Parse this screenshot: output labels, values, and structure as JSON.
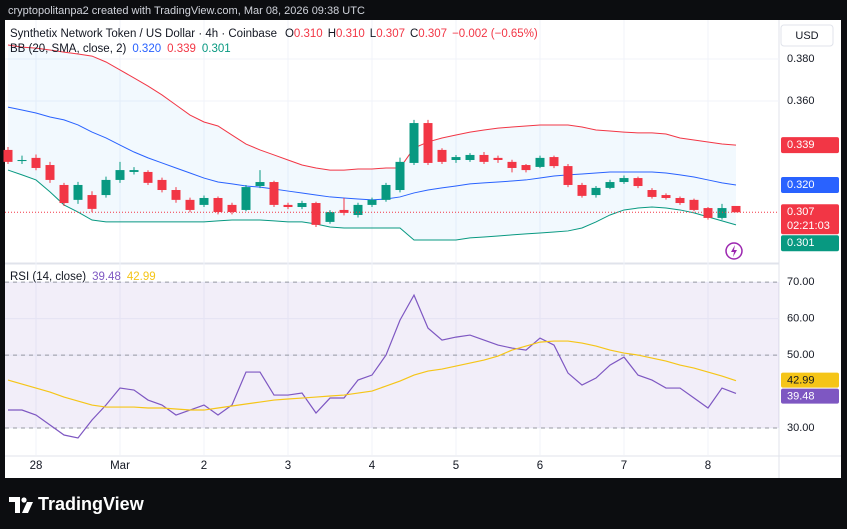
{
  "header": {
    "credit": "cryptopolitanpa2 created with TradingView.com, Mar 08, 2026 09:38 UTC",
    "instrument": "Synthetix Network Token / US Dollar · 4h · Coinbase",
    "ohlc": [
      {
        "label": "O",
        "value": "0.310"
      },
      {
        "label": "H",
        "value": "0.310"
      },
      {
        "label": "L",
        "value": "0.307"
      },
      {
        "label": "C",
        "value": "0.307"
      }
    ],
    "change": "−0.002 (−0.65%)",
    "currency": "USD"
  },
  "footer": {
    "brand": "TradingView"
  },
  "chart_data": [
    {
      "type": "candlestick",
      "grid": true,
      "categories": [
        null,
        null,
        "28",
        null,
        null,
        null,
        null,
        null,
        "Mar",
        null,
        null,
        null,
        null,
        null,
        "2",
        null,
        null,
        null,
        null,
        null,
        "3",
        null,
        null,
        null,
        null,
        null,
        "4",
        null,
        null,
        null,
        null,
        null,
        "5",
        null,
        null,
        null,
        null,
        null,
        "6",
        null,
        null,
        null,
        null,
        null,
        "7",
        null,
        null,
        null,
        null,
        null,
        "8",
        null,
        null
      ],
      "open": [
        0.3367,
        0.3314,
        0.3329,
        0.3295,
        0.32,
        0.3129,
        0.3152,
        0.3152,
        0.3224,
        0.3262,
        0.3262,
        0.3224,
        0.3176,
        0.3129,
        0.3105,
        0.3138,
        0.3105,
        0.3081,
        0.3195,
        0.3214,
        0.3105,
        0.3095,
        0.3114,
        0.3024,
        0.3081,
        0.3057,
        0.3105,
        0.3129,
        0.3176,
        0.3305,
        0.3495,
        0.3367,
        0.3319,
        0.3319,
        0.3343,
        0.3329,
        0.331,
        0.3295,
        0.3286,
        0.3333,
        0.329,
        0.32,
        0.3152,
        0.3186,
        0.3214,
        0.3233,
        0.3176,
        0.3152,
        0.3138,
        0.3129,
        0.309,
        0.3043,
        0.31
      ],
      "high": [
        0.3381,
        0.334,
        0.3345,
        0.331,
        0.321,
        0.3215,
        0.317,
        0.324,
        0.331,
        0.3285,
        0.327,
        0.3235,
        0.319,
        0.314,
        0.315,
        0.3145,
        0.3115,
        0.32,
        0.3271,
        0.322,
        0.3115,
        0.3125,
        0.312,
        0.308,
        0.3138,
        0.3115,
        0.314,
        0.321,
        0.333,
        0.351,
        0.351,
        0.3375,
        0.3343,
        0.3352,
        0.3357,
        0.334,
        0.332,
        0.33,
        0.334,
        0.334,
        0.33,
        0.321,
        0.3195,
        0.3225,
        0.3245,
        0.324,
        0.3185,
        0.316,
        0.3145,
        0.3135,
        0.3095,
        0.311,
        0.31
      ],
      "low": [
        0.33,
        0.33,
        0.327,
        0.321,
        0.31,
        0.311,
        0.307,
        0.314,
        0.321,
        0.325,
        0.32,
        0.3165,
        0.3115,
        0.307,
        0.3095,
        0.306,
        0.306,
        0.3075,
        0.3185,
        0.3095,
        0.3085,
        0.3085,
        0.3,
        0.3015,
        0.3055,
        0.3045,
        0.3095,
        0.312,
        0.3165,
        0.3295,
        0.3295,
        0.33,
        0.3305,
        0.331,
        0.33,
        0.3305,
        0.326,
        0.326,
        0.328,
        0.328,
        0.319,
        0.314,
        0.314,
        0.318,
        0.3205,
        0.3185,
        0.3135,
        0.313,
        0.3105,
        0.3075,
        0.3035,
        0.3035,
        0.307
      ],
      "close": [
        0.331,
        0.3319,
        0.3281,
        0.3224,
        0.3114,
        0.32,
        0.3086,
        0.3224,
        0.3271,
        0.3271,
        0.321,
        0.3176,
        0.3129,
        0.3081,
        0.3138,
        0.3071,
        0.3071,
        0.319,
        0.3214,
        0.3105,
        0.3095,
        0.3114,
        0.301,
        0.3071,
        0.3067,
        0.3105,
        0.3129,
        0.32,
        0.331,
        0.3495,
        0.3305,
        0.331,
        0.3333,
        0.3343,
        0.331,
        0.3319,
        0.3281,
        0.3271,
        0.3329,
        0.329,
        0.32,
        0.3148,
        0.3186,
        0.3214,
        0.3233,
        0.3195,
        0.3143,
        0.3138,
        0.3114,
        0.3081,
        0.3043,
        0.309,
        0.307
      ],
      "up_color": "#089981",
      "down_color": "#f23645",
      "countdown": "02:21:03",
      "legend": {
        "text": "BB (20, SMA, close, 2)",
        "values": [
          "0.320",
          "0.339",
          "0.301"
        ]
      },
      "overlays": [
        {
          "color": "#2962ff",
          "values": [
            0.3571,
            0.3557,
            0.3543,
            0.3524,
            0.351,
            0.3486,
            0.3452,
            0.3424,
            0.339,
            0.3357,
            0.3329,
            0.3305,
            0.3281,
            0.3257,
            0.3233,
            0.3214,
            0.3205,
            0.3195,
            0.319,
            0.3181,
            0.3171,
            0.3162,
            0.3152,
            0.3143,
            0.3138,
            0.3133,
            0.3129,
            0.3133,
            0.3143,
            0.3162,
            0.3176,
            0.3186,
            0.3195,
            0.3205,
            0.321,
            0.3214,
            0.3219,
            0.3224,
            0.3233,
            0.3243,
            0.3248,
            0.3252,
            0.3257,
            0.3262,
            0.3262,
            0.3262,
            0.3262,
            0.3257,
            0.3248,
            0.3238,
            0.3224,
            0.321,
            0.32
          ]
        },
        {
          "color": "#f23645",
          "values": [
            0.3867,
            0.3857,
            0.3852,
            0.3843,
            0.3833,
            0.3824,
            0.3814,
            0.3786,
            0.3748,
            0.371,
            0.3671,
            0.3629,
            0.3581,
            0.3533,
            0.35,
            0.3481,
            0.3438,
            0.3395,
            0.3367,
            0.3343,
            0.3319,
            0.3295,
            0.3281,
            0.3271,
            0.3271,
            0.3276,
            0.3276,
            0.3281,
            0.3281,
            0.3376,
            0.3405,
            0.3424,
            0.3438,
            0.3452,
            0.3462,
            0.3471,
            0.3476,
            0.3481,
            0.3486,
            0.3486,
            0.3486,
            0.3476,
            0.3462,
            0.3457,
            0.3452,
            0.3448,
            0.3448,
            0.3443,
            0.3424,
            0.3414,
            0.3405,
            0.3395,
            0.339
          ]
        },
        {
          "color": "#089981",
          "values": [
            0.3271,
            0.3248,
            0.3224,
            0.3167,
            0.3105,
            0.3071,
            0.3033,
            0.3024,
            0.3024,
            0.3024,
            0.3024,
            0.3024,
            0.3024,
            0.3024,
            0.3024,
            0.3029,
            0.3033,
            0.3033,
            0.3033,
            0.3029,
            0.3024,
            0.3024,
            0.3014,
            0.3,
            0.2995,
            0.2995,
            0.2995,
            0.2995,
            0.2995,
            0.2938,
            0.2938,
            0.2938,
            0.2938,
            0.2948,
            0.2952,
            0.2957,
            0.2962,
            0.2967,
            0.2971,
            0.2976,
            0.2981,
            0.2995,
            0.3024,
            0.3057,
            0.3081,
            0.309,
            0.3095,
            0.309,
            0.3081,
            0.3067,
            0.3048,
            0.3029,
            0.301
          ]
        }
      ],
      "band_fill": "rgba(33,150,243,0.06)",
      "ylim": [
        0.2833,
        0.3986
      ],
      "yticks": [
        {
          "value": 0.38,
          "label": "0.380"
        },
        {
          "value": 0.36,
          "label": "0.360"
        }
      ]
    },
    {
      "type": "line",
      "grid": true,
      "legend": {
        "text": "RSI (14, close)"
      },
      "series": [
        {
          "color": "#7e57c2",
          "values": [
            34.93,
            34.93,
            33.56,
            30.82,
            28.08,
            27.26,
            32.19,
            36.3,
            40.96,
            40.41,
            37.67,
            36.3,
            33.56,
            34.93,
            36.3,
            33.56,
            36.3,
            45.34,
            45.34,
            39.04,
            39.04,
            39.59,
            34.11,
            38.22,
            38.22,
            43.15,
            44.52,
            50,
            59.59,
            66.44,
            57.4,
            54.11,
            54.93,
            55.48,
            54.11,
            52.74,
            51.92,
            51.37,
            54.66,
            52.74,
            45.07,
            41.78,
            43.7,
            47.26,
            49.45,
            44.52,
            43.15,
            40.96,
            40.96,
            38.22,
            35.48,
            40.96,
            39.48
          ]
        },
        {
          "color": "#f5c518",
          "values": [
            43.15,
            42.05,
            40.96,
            39.86,
            38.49,
            37.4,
            36.3,
            35.75,
            35.75,
            35.75,
            35.48,
            35.48,
            35.21,
            34.93,
            34.93,
            35.48,
            36.03,
            36.58,
            37.12,
            37.67,
            37.95,
            38.22,
            38.49,
            38.77,
            39.04,
            39.59,
            40.14,
            41.51,
            42.88,
            44.52,
            45.62,
            46.16,
            46.99,
            47.81,
            48.63,
            49.73,
            51.37,
            52.47,
            53.56,
            53.84,
            53.84,
            53.29,
            52.47,
            51.37,
            50.55,
            50,
            49.18,
            48.36,
            47.26,
            46.44,
            45.34,
            44.25,
            42.99
          ]
        }
      ],
      "levels": [
        70,
        50,
        30
      ],
      "level_fill": "rgba(126,87,194,0.1)",
      "ylim": [
        22.6,
        74.7
      ],
      "yticks": [
        {
          "value": 70,
          "label": "70.00"
        },
        {
          "value": 60,
          "label": "60.00"
        },
        {
          "value": 50,
          "label": "50.00"
        },
        {
          "value": 30,
          "label": "30.00"
        }
      ]
    }
  ]
}
